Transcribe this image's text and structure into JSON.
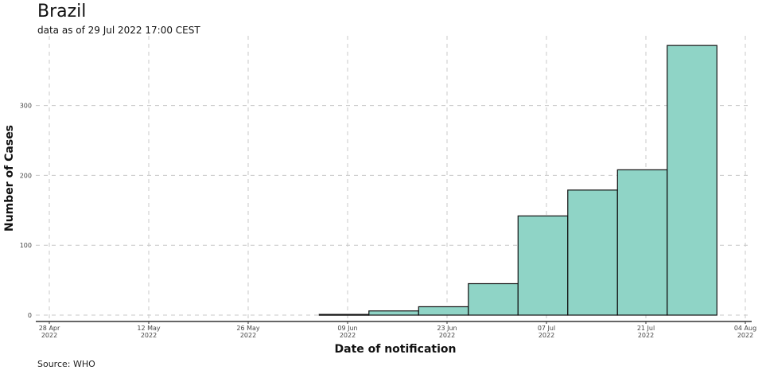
{
  "chart_data": {
    "type": "bar",
    "title": "Brazil",
    "subtitle": "data as of 29 Jul 2022 17:00 CEST",
    "caption": "Source: WHO",
    "xlabel": "Date of notification",
    "ylabel": "Number of Cases",
    "bin_days": 7,
    "x": [
      "2022-06-05",
      "2022-06-12",
      "2022-06-19",
      "2022-06-26",
      "2022-07-03",
      "2022-07-10",
      "2022-07-17",
      "2022-07-24"
    ],
    "values": [
      1,
      6,
      12,
      45,
      142,
      179,
      208,
      386
    ],
    "xlim": [
      "2022-04-28",
      "2022-08-04"
    ],
    "ylim": [
      0,
      393
    ],
    "x_ticks": [
      {
        "date": "2022-04-28",
        "line1": "28 Apr",
        "line2": "2022"
      },
      {
        "date": "2022-05-12",
        "line1": "12 May",
        "line2": "2022"
      },
      {
        "date": "2022-05-26",
        "line1": "26 May",
        "line2": "2022"
      },
      {
        "date": "2022-06-09",
        "line1": "09 Jun",
        "line2": "2022"
      },
      {
        "date": "2022-06-23",
        "line1": "23 Jun",
        "line2": "2022"
      },
      {
        "date": "2022-07-07",
        "line1": "07 Jul",
        "line2": "2022"
      },
      {
        "date": "2022-07-21",
        "line1": "21 Jul",
        "line2": "2022"
      },
      {
        "date": "2022-08-04",
        "line1": "04 Aug",
        "line2": "2022"
      }
    ],
    "y_ticks": [
      0,
      100,
      200,
      300
    ],
    "grid": true,
    "bar_color": "#8fd4c6",
    "bar_edge": "#111111"
  }
}
